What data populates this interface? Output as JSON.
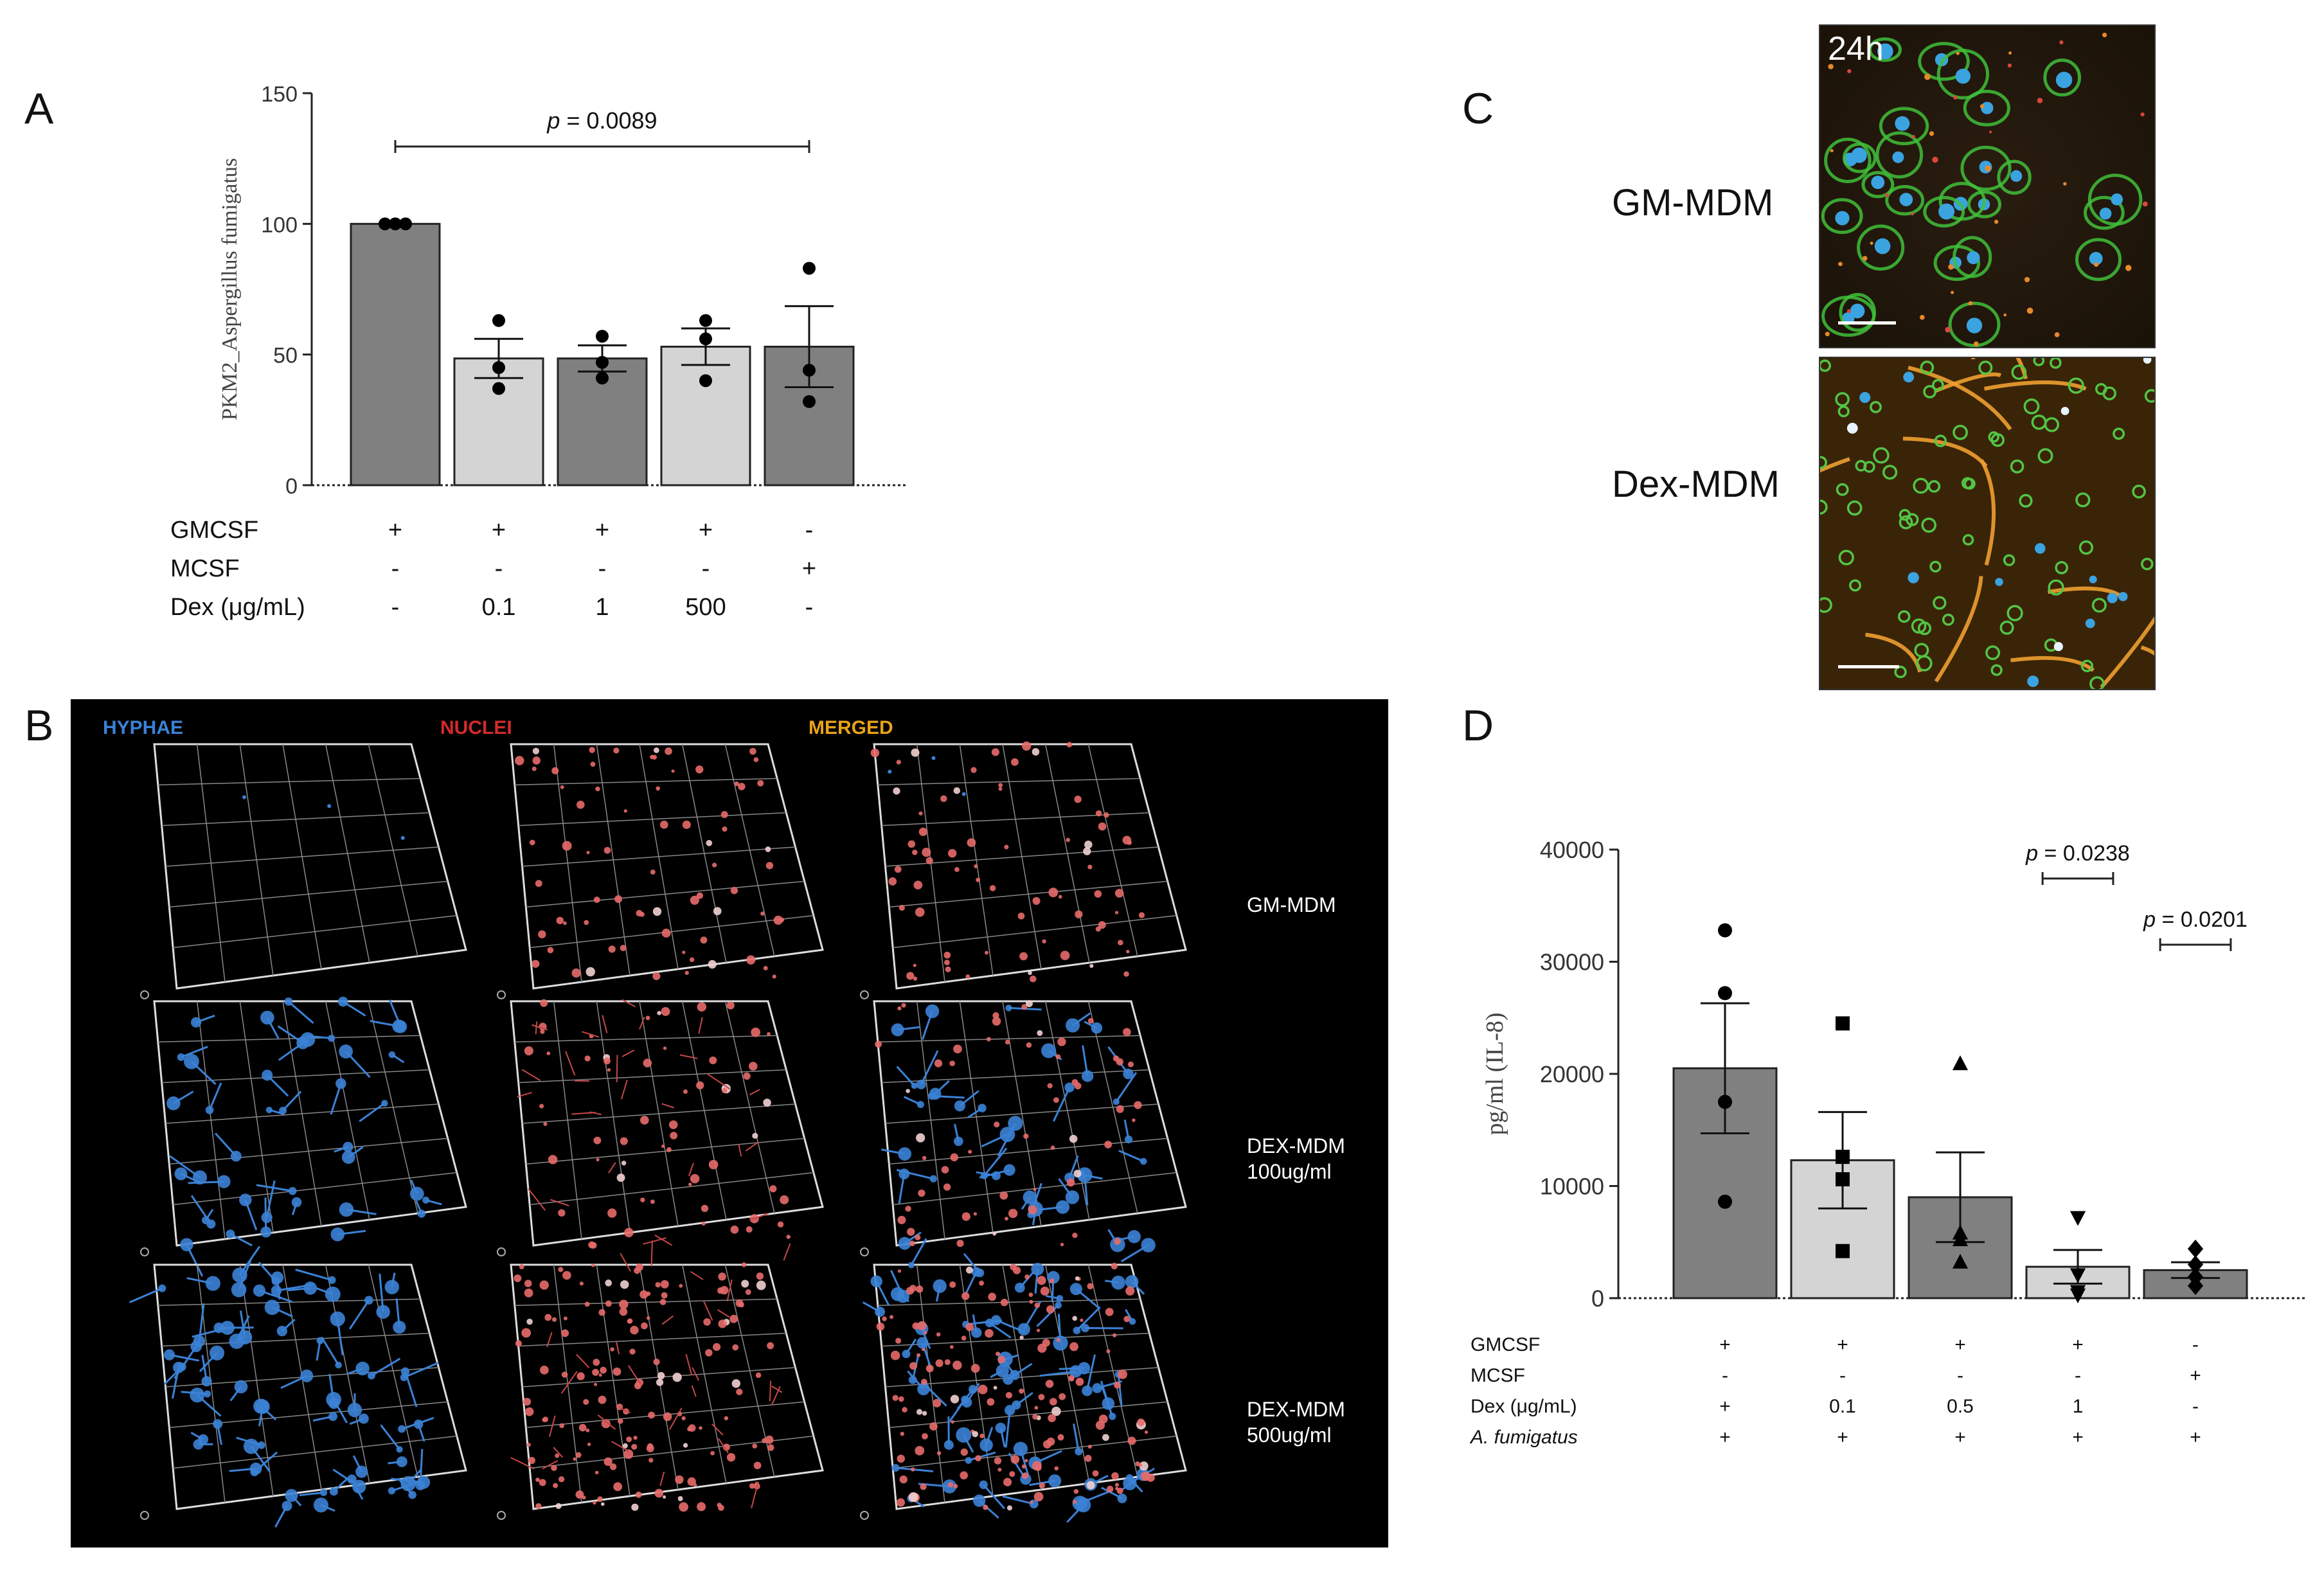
{
  "panels": {
    "A": "A",
    "B": "B",
    "C": "C",
    "D": "D"
  },
  "chart_data": [
    {
      "panel": "A",
      "type": "bar",
      "ylabel": "PKM2_Aspergillus fumigatus",
      "ylim": [
        0,
        150
      ],
      "yticks": [
        0,
        50,
        100,
        150
      ],
      "bars": [
        {
          "mean": 100,
          "sem": 0,
          "points": [
            100,
            100,
            100
          ],
          "fill": "#808080"
        },
        {
          "mean": 48.5,
          "sem": 7.5,
          "points": [
            63,
            37,
            45
          ],
          "fill": "#d4d4d4"
        },
        {
          "mean": 48.5,
          "sem": 5,
          "points": [
            57,
            41,
            47
          ],
          "fill": "#808080"
        },
        {
          "mean": 53,
          "sem": 7,
          "points": [
            63,
            40,
            56
          ],
          "fill": "#d4d4d4"
        },
        {
          "mean": 53,
          "sem": 15.5,
          "points": [
            83,
            32,
            44
          ],
          "fill": "#808080"
        }
      ],
      "significance": [
        {
          "from": 0,
          "to": 4,
          "label": "p = 0.0089"
        }
      ],
      "conditions": {
        "rows": [
          {
            "label": "GMCSF",
            "values": [
              "+",
              "+",
              "+",
              "+",
              "-"
            ]
          },
          {
            "label": "MCSF",
            "values": [
              "-",
              "-",
              "-",
              "-",
              "+"
            ]
          },
          {
            "label": "Dex (μg/mL)",
            "values": [
              "-",
              "0.1",
              "1",
              "500",
              "-"
            ]
          }
        ]
      }
    },
    {
      "panel": "D",
      "type": "bar",
      "ylabel": "pg/ml (IL-8)",
      "ylim": [
        0,
        40000
      ],
      "yticks": [
        0,
        10000,
        20000,
        30000,
        40000
      ],
      "bars": [
        {
          "mean": 20500,
          "sem": 5800,
          "points": [
            32800,
            27200,
            17500,
            8600
          ],
          "marker": "circle",
          "fill": "#808080"
        },
        {
          "mean": 12300,
          "sem": 4300,
          "points": [
            24500,
            12600,
            10600,
            4200
          ],
          "marker": "square",
          "fill": "#d4d4d4"
        },
        {
          "mean": 9000,
          "sem": 4000,
          "points": [
            20900,
            5800,
            5200,
            3200
          ],
          "marker": "triangle",
          "fill": "#808080"
        },
        {
          "mean": 2800,
          "sem": 1500,
          "points": [
            7200,
            2100,
            600,
            300
          ],
          "marker": "triangle-down",
          "fill": "#d4d4d4"
        },
        {
          "mean": 2500,
          "sem": 700,
          "points": [
            4400,
            3000,
            1900,
            1100
          ],
          "marker": "diamond",
          "fill": "#808080"
        }
      ],
      "significance": [
        {
          "from": 2.7,
          "to": 3.3,
          "label": "p = 0.0238"
        },
        {
          "from": 3.7,
          "to": 4.3,
          "label": "p = 0.0201"
        }
      ],
      "conditions": {
        "rows": [
          {
            "label": "GMCSF",
            "values": [
              "+",
              "+",
              "+",
              "+",
              "-"
            ]
          },
          {
            "label": "MCSF",
            "values": [
              "-",
              "-",
              "-",
              "-",
              "+"
            ]
          },
          {
            "label": "Dex (μg/mL)",
            "values": [
              "+",
              "0.1",
              "0.5",
              "1",
              "-"
            ]
          },
          {
            "label": "A. fumigatus",
            "values": [
              "+",
              "+",
              "+",
              "+",
              "+"
            ]
          }
        ]
      }
    }
  ],
  "panelB": {
    "headers": [
      {
        "text": "HYPHAE",
        "color": "#3b82d6"
      },
      {
        "text": "NUCLEI",
        "color": "#d42a2a"
      },
      {
        "text": "MERGED",
        "color": "#e8a317"
      }
    ],
    "rows": [
      {
        "label_line1": "GM-MDM",
        "label_line2": ""
      },
      {
        "label_line1": "DEX-MDM",
        "label_line2": "100ug/ml"
      },
      {
        "label_line1": "DEX-MDM",
        "label_line2": "500ug/ml"
      }
    ]
  },
  "panelC": {
    "time_label": "24h",
    "rows": [
      {
        "label": "GM-MDM"
      },
      {
        "label": "Dex-MDM"
      }
    ]
  }
}
